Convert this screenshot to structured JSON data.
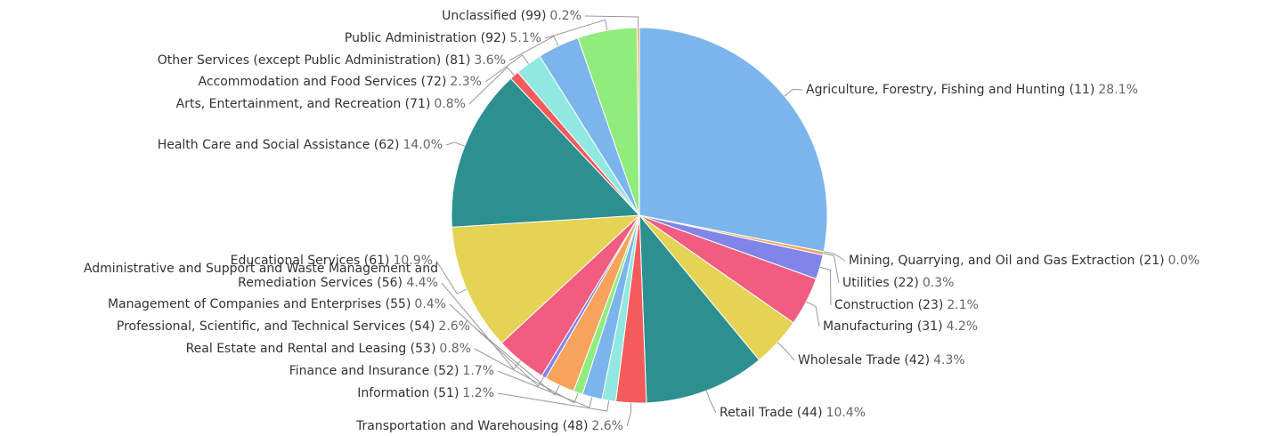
{
  "chart_data": {
    "type": "pie",
    "categories": [
      "Agriculture, Forestry, Fishing and Hunting (11)",
      "Mining, Quarrying, and Oil and Gas Extraction (21)",
      "Utilities (22)",
      "Construction (23)",
      "Manufacturing (31)",
      "Wholesale Trade (42)",
      "Retail Trade (44)",
      "Transportation and Warehousing (48)",
      "Information (51)",
      "Finance and Insurance (52)",
      "Real Estate and Rental and Leasing (53)",
      "Professional, Scientific, and Technical Services (54)",
      "Management of Companies and Enterprises (55)",
      "Administrative and Support and Waste Management and Remediation Services (56)",
      "Educational Services (61)",
      "Health Care and Social Assistance (62)",
      "Arts, Entertainment, and Recreation (71)",
      "Accommodation and Food Services (72)",
      "Other Services (except Public Administration) (81)",
      "Public Administration (92)",
      "Unclassified (99)"
    ],
    "values": [
      28.1,
      0.0,
      0.3,
      2.1,
      4.2,
      4.3,
      10.4,
      2.6,
      1.2,
      1.7,
      0.8,
      2.6,
      0.4,
      4.4,
      10.9,
      14.0,
      0.8,
      2.3,
      3.6,
      5.1,
      0.2
    ],
    "value_labels": [
      "28.1%",
      "0.0%",
      "0.3%",
      "2.1%",
      "4.2%",
      "4.3%",
      "10.4%",
      "2.6%",
      "1.2%",
      "1.7%",
      "0.8%",
      "2.6%",
      "0.4%",
      "4.4%",
      "10.9%",
      "14.0%",
      "0.8%",
      "2.3%",
      "3.6%",
      "5.1%",
      "0.2%"
    ],
    "colors": [
      "#7cb5ec",
      "#f7a35c",
      "#f7a35c",
      "#8085e9",
      "#f15c80",
      "#e4d354",
      "#2b908f",
      "#f45b5b",
      "#91e8e1",
      "#7cb5ec",
      "#90ed7d",
      "#f7a35c",
      "#8085e9",
      "#f15c80",
      "#e4d354",
      "#2b908f",
      "#f45b5b",
      "#91e8e1",
      "#7cb5ec",
      "#90ed7d",
      "#f7a35c"
    ]
  }
}
